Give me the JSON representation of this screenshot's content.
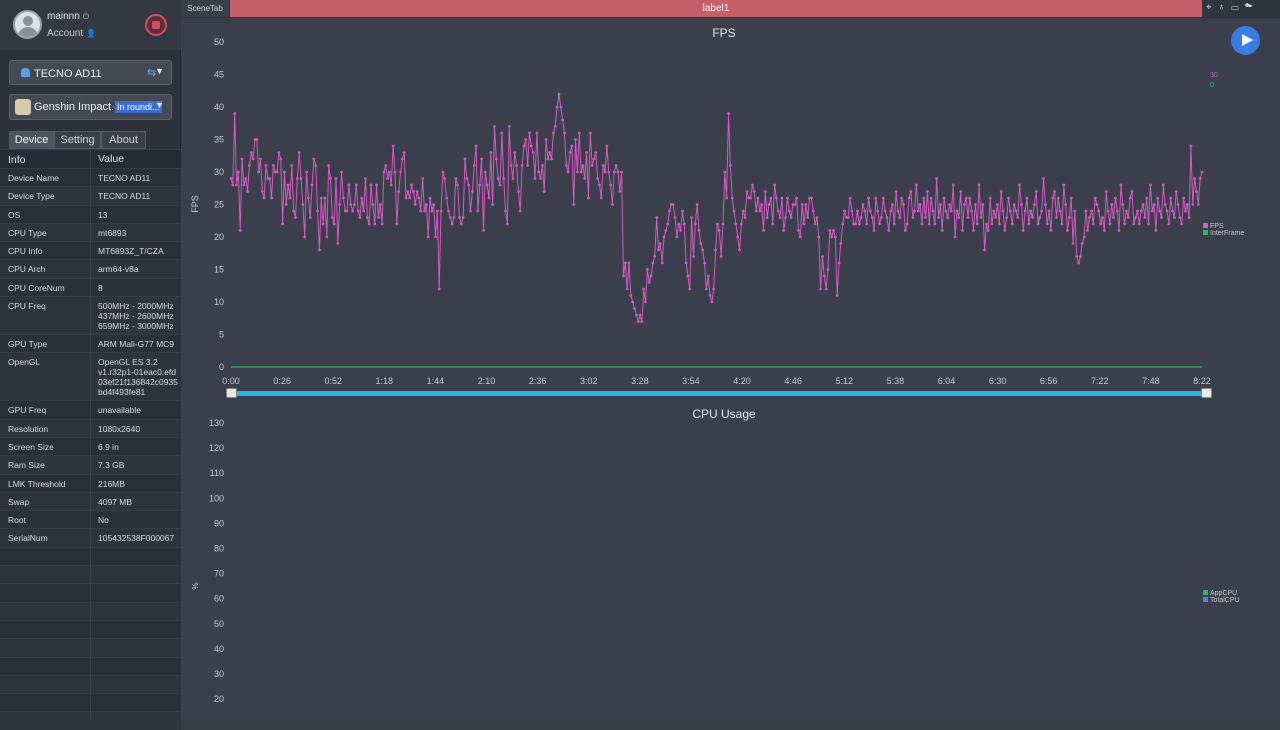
{
  "user": {
    "name": "mainnn",
    "account": "Account"
  },
  "device_select": {
    "label": "TECNO AD11"
  },
  "app_select": {
    "label": "Genshin Impact...",
    "status": "In roundi..."
  },
  "tabs": [
    {
      "label": "Device",
      "active": true
    },
    {
      "label": "Setting",
      "active": false
    },
    {
      "label": "About",
      "active": false
    }
  ],
  "info_table": {
    "headers": {
      "info": "Info",
      "value": "Value"
    },
    "rows": [
      {
        "k": "Device Name",
        "v": "TECNO AD11"
      },
      {
        "k": "Device Type",
        "v": "TECNO AD11"
      },
      {
        "k": "OS",
        "v": "13"
      },
      {
        "k": "CPU Type",
        "v": "mt6893"
      },
      {
        "k": "CPU Info",
        "v": "MT6893Z_T/CZA"
      },
      {
        "k": "CPU Arch",
        "v": "arm64-v8a"
      },
      {
        "k": "CPU CoreNum",
        "v": "8"
      },
      {
        "k": "CPU Freq",
        "v": "500MHz - 2000MHz\n437MHz - 2600MHz\n659MHz - 3000MHz"
      },
      {
        "k": "GPU Type",
        "v": "ARM Mali-G77 MC9"
      },
      {
        "k": "OpenGL",
        "v": "OpenGL ES 3.2\nv1.r32p1-01eac0.efd\n03ef21f136842c0935\nbd4f493fe81"
      },
      {
        "k": "GPU Freq",
        "v": "unavailable"
      },
      {
        "k": "Resolution",
        "v": "1080x2640"
      },
      {
        "k": "Screen Size",
        "v": "6.9 in"
      },
      {
        "k": "Ram Size",
        "v": "7.3 GB"
      },
      {
        "k": "LMK Threshold",
        "v": "216MB"
      },
      {
        "k": "Swap",
        "v": "4097 MB"
      },
      {
        "k": "Root",
        "v": "No"
      },
      {
        "k": "SerialNum",
        "v": "105432538F000067"
      }
    ]
  },
  "topbar": {
    "scene_tab": "SceneTab",
    "label_tab": "label1"
  },
  "colors": {
    "fps": "#d35bc3",
    "interframe": "#36b36a",
    "appcpu": "#36b36a",
    "totalcpu": "#4f86e8",
    "slider": "#26b6e8",
    "label_tab": "#c56068"
  },
  "chart_data": [
    {
      "type": "line",
      "title": "FPS",
      "ylabel": "FPS",
      "ylim": [
        0,
        50
      ],
      "y_ticks": [
        0,
        5,
        10,
        15,
        20,
        25,
        30,
        35,
        40,
        45,
        50
      ],
      "x_ticks": [
        "0:00",
        "0:26",
        "0:52",
        "1:18",
        "1:44",
        "2:10",
        "2:36",
        "3:02",
        "3:28",
        "3:54",
        "4:20",
        "4:46",
        "5:12",
        "5:38",
        "6:04",
        "6:30",
        "6:56",
        "7:22",
        "7:48",
        "8:22"
      ],
      "side_values": [
        "30",
        "0"
      ],
      "legend": [
        "FPS",
        "InterFrame"
      ],
      "series": [
        {
          "name": "FPS",
          "values": [
            29,
            28,
            39,
            28,
            30,
            21,
            32,
            28,
            29,
            27,
            31,
            33,
            32,
            35,
            35,
            30,
            32,
            27,
            26,
            31,
            29,
            29,
            26,
            31,
            30,
            30,
            33,
            32,
            22,
            30,
            25,
            28,
            26,
            31,
            24,
            23,
            29,
            33,
            29,
            25,
            20,
            30,
            26,
            23,
            28,
            32,
            31,
            24,
            18,
            26,
            22,
            26,
            20,
            31,
            29,
            23,
            22,
            29,
            19,
            25,
            30,
            26,
            24,
            24,
            28,
            25,
            24,
            25,
            28,
            24,
            23,
            26,
            24,
            29,
            23,
            22,
            28,
            25,
            22,
            28,
            23,
            25,
            22,
            30,
            31,
            29,
            30,
            28,
            34,
            30,
            22,
            27,
            30,
            32,
            33,
            26,
            27,
            26,
            28,
            27,
            25,
            27,
            26,
            24,
            29,
            24,
            25,
            20,
            26,
            24,
            25,
            20,
            24,
            12,
            24,
            30,
            29,
            26,
            24,
            23,
            22,
            23,
            29,
            28,
            23,
            22,
            23,
            32,
            29,
            28,
            24,
            27,
            31,
            34,
            24,
            28,
            32,
            21,
            30,
            28,
            26,
            33,
            25,
            37,
            32,
            29,
            28,
            36,
            29,
            24,
            22,
            37,
            31,
            29,
            33,
            31,
            27,
            24,
            31,
            34,
            35,
            31,
            36,
            34,
            33,
            29,
            36,
            30,
            29,
            31,
            27,
            35,
            32,
            33,
            32,
            36,
            37,
            40,
            42,
            40,
            38,
            36,
            31,
            30,
            33,
            34,
            25,
            35,
            30,
            36,
            30,
            31,
            29,
            33,
            26,
            36,
            31,
            32,
            33,
            29,
            28,
            26,
            31,
            30,
            34,
            30,
            28,
            25,
            30,
            31,
            30,
            27,
            30,
            14,
            16,
            12,
            16,
            11,
            10,
            9,
            8,
            7,
            8,
            7,
            12,
            10,
            15,
            13,
            14,
            16,
            17,
            23,
            18,
            19,
            16,
            20,
            21,
            22,
            24,
            25,
            25,
            23,
            20,
            22,
            21,
            24,
            22,
            16,
            14,
            12,
            23,
            17,
            22,
            25,
            21,
            19,
            18,
            16,
            12,
            14,
            11,
            10,
            12,
            18,
            22,
            21,
            17,
            22,
            30,
            26,
            39,
            31,
            26,
            24,
            22,
            20,
            18,
            22,
            24,
            23,
            27,
            26,
            26,
            28,
            27,
            24,
            26,
            24,
            25,
            21,
            27,
            23,
            25,
            26,
            22,
            28,
            26,
            24,
            23,
            26,
            21,
            23,
            26,
            24,
            23,
            25,
            25,
            26,
            21,
            20,
            25,
            22,
            25,
            23,
            26,
            26,
            24,
            22,
            23,
            20,
            12,
            17,
            14,
            12,
            15,
            21,
            20,
            21,
            20,
            11,
            16,
            19,
            22,
            24,
            23,
            23,
            26,
            24,
            22,
            22,
            24,
            22,
            23,
            25,
            24,
            22,
            26,
            24,
            23,
            21,
            26,
            24,
            22,
            23,
            26,
            24,
            23,
            21,
            24,
            25,
            22,
            27,
            24,
            23,
            26,
            25,
            21,
            22,
            26,
            27,
            23,
            24,
            28,
            24,
            25,
            22,
            26,
            23,
            27,
            22,
            26,
            24,
            22,
            29,
            23,
            25,
            21,
            26,
            24,
            23,
            25,
            24,
            28,
            20,
            24,
            23,
            27,
            21,
            25,
            26,
            23,
            26,
            24,
            21,
            25,
            22,
            28,
            23,
            25,
            18,
            22,
            21,
            26,
            22,
            24,
            23,
            25,
            22,
            27,
            24,
            21,
            23,
            26,
            24,
            22,
            25,
            24,
            23,
            28,
            25,
            21,
            24,
            26,
            22,
            24,
            23,
            25,
            27,
            22,
            23,
            24,
            29,
            25,
            22,
            24,
            21,
            26,
            27,
            23,
            26,
            24,
            22,
            28,
            25,
            21,
            23,
            26,
            19,
            24,
            17,
            16,
            17,
            19,
            20,
            24,
            21,
            23,
            24,
            22,
            26,
            25,
            24,
            22,
            23,
            21,
            27,
            24,
            22,
            25,
            23,
            26,
            24,
            21,
            28,
            25,
            22,
            24,
            23,
            26,
            27,
            22,
            23,
            24,
            22,
            24,
            25,
            23,
            26,
            22,
            28,
            24,
            25,
            21,
            26,
            24,
            23,
            28,
            25,
            24,
            22,
            26,
            24,
            23,
            27,
            25,
            23,
            22,
            26,
            24,
            25,
            23,
            34,
            25,
            29,
            27,
            25,
            29,
            30
          ]
        },
        {
          "name": "InterFrame",
          "values": [
            0
          ]
        }
      ]
    },
    {
      "type": "line",
      "title": "CPU Usage",
      "ylabel": "%",
      "ylim": [
        0,
        130
      ],
      "y_ticks": [
        20,
        30,
        40,
        50,
        60,
        70,
        80,
        90,
        100,
        110,
        120,
        130
      ],
      "legend": [
        "AppCPU",
        "TotalCPU"
      ],
      "series": []
    }
  ]
}
